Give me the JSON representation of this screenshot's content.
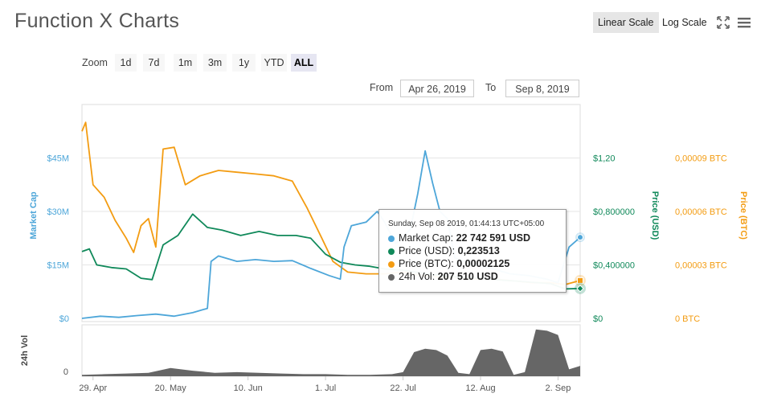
{
  "page": {
    "title": "Function X Charts",
    "scale_buttons": [
      "Linear Scale",
      "Log Scale"
    ],
    "active_scale": "Linear Scale",
    "zoom_label": "Zoom",
    "zoom_buttons": [
      "1d",
      "7d",
      "1m",
      "3m",
      "1y",
      "YTD",
      "ALL"
    ],
    "active_zoom": "ALL",
    "from_label": "From",
    "from_value": "Apr 26, 2019",
    "to_label": "To",
    "to_value": "Sep 8, 2019"
  },
  "icons": [
    "fullscreen-icon",
    "menu-icon"
  ],
  "colors": {
    "market_cap": "#4da6d9",
    "price_usd": "#10895a",
    "price_btc": "#f39c12",
    "volume": "#666666",
    "active_bg": "#e6e6e6"
  },
  "tooltip": {
    "header": "Sunday, Sep 08 2019, 01:44:13 UTC+05:00",
    "rows": [
      {
        "label": "Market Cap:",
        "value": "22 742 591 USD",
        "color": "#4da6d9"
      },
      {
        "label": "Price (USD):",
        "value": "0,223513",
        "color": "#10895a"
      },
      {
        "label": "Price (BTC):",
        "value": "0,00002125",
        "color": "#f39c12"
      },
      {
        "label": "24h Vol:",
        "value": "207 510 USD",
        "color": "#666666"
      }
    ]
  },
  "chart_data": {
    "type": "line",
    "x_tick_labels": [
      "29. Apr",
      "20. May",
      "10. Jun",
      "1. Jul",
      "22. Jul",
      "12. Aug",
      "2. Sep"
    ],
    "x_range": [
      "2019-04-26",
      "2019-09-08"
    ],
    "y_axes": {
      "market_cap": {
        "label": "Market Cap",
        "ticks": [
          "$0",
          "$15M",
          "$30M",
          "$45M"
        ],
        "range": [
          0,
          45000000
        ]
      },
      "price_usd": {
        "label": "Price (USD)",
        "ticks": [
          "$0",
          "$0,400000",
          "$0,800000",
          "$1,20"
        ],
        "range": [
          0,
          1.2
        ]
      },
      "price_btc": {
        "label": "Price (BTC)",
        "ticks": [
          "0 BTC",
          "0,00003 BTC",
          "0,00006 BTC",
          "0,00009 BTC"
        ],
        "range": [
          0,
          9e-05
        ]
      },
      "volume": {
        "label": "24h Vol",
        "ticks": [
          "0"
        ]
      }
    },
    "grid": true,
    "series": [
      {
        "name": "Market Cap",
        "axis": "market_cap",
        "x": [
          "2019-04-26",
          "2019-05-01",
          "2019-05-06",
          "2019-05-11",
          "2019-05-16",
          "2019-05-21",
          "2019-05-26",
          "2019-05-30",
          "2019-05-31",
          "2019-06-02",
          "2019-06-07",
          "2019-06-12",
          "2019-06-17",
          "2019-06-22",
          "2019-06-27",
          "2019-07-02",
          "2019-07-05",
          "2019-07-06",
          "2019-07-08",
          "2019-07-12",
          "2019-07-15",
          "2019-07-17",
          "2019-07-20",
          "2019-07-24",
          "2019-07-26",
          "2019-07-28",
          "2019-07-30",
          "2019-08-01",
          "2019-08-03",
          "2019-08-05",
          "2019-08-10",
          "2019-08-15",
          "2019-08-20",
          "2019-08-25",
          "2019-08-30",
          "2019-09-02",
          "2019-09-05",
          "2019-09-08"
        ],
        "values": [
          0,
          0.6,
          0.3,
          0.8,
          1.2,
          0.6,
          1.6,
          2.8,
          16,
          17.5,
          16,
          16.5,
          16,
          16.2,
          14,
          12,
          11,
          20,
          26,
          27,
          30,
          27,
          21,
          25,
          35,
          47,
          38,
          30,
          28,
          17,
          15,
          14,
          12.5,
          12,
          11,
          10,
          20,
          22.74
        ]
      },
      {
        "name": "Price (USD)",
        "axis": "price_usd",
        "x": [
          "2019-04-26",
          "2019-04-28",
          "2019-04-30",
          "2019-05-04",
          "2019-05-08",
          "2019-05-12",
          "2019-05-15",
          "2019-05-18",
          "2019-05-22",
          "2019-05-26",
          "2019-05-30",
          "2019-06-03",
          "2019-06-08",
          "2019-06-13",
          "2019-06-18",
          "2019-06-23",
          "2019-06-27",
          "2019-07-01",
          "2019-07-05",
          "2019-07-09",
          "2019-07-13",
          "2019-07-17",
          "2019-07-22",
          "2019-07-27",
          "2019-08-01",
          "2019-08-06",
          "2019-08-11",
          "2019-08-16",
          "2019-08-21",
          "2019-08-26",
          "2019-08-31",
          "2019-09-04",
          "2019-09-08"
        ],
        "values": [
          0.5,
          0.52,
          0.4,
          0.38,
          0.37,
          0.3,
          0.29,
          0.55,
          0.62,
          0.78,
          0.68,
          0.66,
          0.62,
          0.65,
          0.62,
          0.62,
          0.6,
          0.48,
          0.42,
          0.4,
          0.39,
          0.37,
          0.36,
          0.34,
          0.32,
          0.31,
          0.3,
          0.29,
          0.28,
          0.27,
          0.26,
          0.22,
          0.2235
        ]
      },
      {
        "name": "Price (BTC)",
        "axis": "price_btc",
        "x": [
          "2019-04-26",
          "2019-04-27",
          "2019-04-29",
          "2019-05-02",
          "2019-05-05",
          "2019-05-08",
          "2019-05-10",
          "2019-05-12",
          "2019-05-14",
          "2019-05-16",
          "2019-05-18",
          "2019-05-21",
          "2019-05-24",
          "2019-05-28",
          "2019-06-02",
          "2019-06-07",
          "2019-06-12",
          "2019-06-17",
          "2019-06-22",
          "2019-06-26",
          "2019-06-30",
          "2019-07-03",
          "2019-07-07",
          "2019-07-12",
          "2019-07-17",
          "2019-07-22",
          "2019-07-27",
          "2019-08-01",
          "2019-08-06",
          "2019-08-11",
          "2019-08-16",
          "2019-08-21",
          "2019-08-26",
          "2019-08-31",
          "2019-09-04",
          "2019-09-08"
        ],
        "values": [
          0.000105,
          0.00011,
          7.5e-05,
          6.8e-05,
          5.5e-05,
          4.5e-05,
          3.7e-05,
          5.2e-05,
          5.6e-05,
          4e-05,
          9.5e-05,
          9.6e-05,
          7.5e-05,
          8e-05,
          8.3e-05,
          8.2e-05,
          8.1e-05,
          8e-05,
          7.7e-05,
          6.2e-05,
          4.5e-05,
          3.2e-05,
          2.6e-05,
          2.5e-05,
          2.5e-05,
          2.6e-05,
          2.4e-05,
          2.3e-05,
          2.3e-05,
          2.2e-05,
          2.2e-05,
          2.1e-05,
          2e-05,
          2e-05,
          1.9e-05,
          2.125e-05
        ]
      },
      {
        "name": "24h Vol",
        "axis": "volume",
        "x": [
          "2019-04-26",
          "2019-05-02",
          "2019-05-08",
          "2019-05-14",
          "2019-05-20",
          "2019-05-26",
          "2019-06-01",
          "2019-06-07",
          "2019-06-13",
          "2019-06-19",
          "2019-06-25",
          "2019-07-01",
          "2019-07-07",
          "2019-07-13",
          "2019-07-19",
          "2019-07-22",
          "2019-07-25",
          "2019-07-28",
          "2019-07-31",
          "2019-08-03",
          "2019-08-06",
          "2019-08-09",
          "2019-08-12",
          "2019-08-15",
          "2019-08-18",
          "2019-08-21",
          "2019-08-24",
          "2019-08-27",
          "2019-08-30",
          "2019-09-02",
          "2019-09-05",
          "2019-09-08"
        ],
        "values": [
          2,
          3,
          4,
          5,
          12,
          8,
          5,
          6,
          5,
          4,
          3,
          3,
          2,
          2,
          3,
          6,
          35,
          40,
          38,
          30,
          5,
          3,
          38,
          40,
          36,
          2,
          6,
          68,
          66,
          60,
          10,
          15
        ]
      }
    ]
  }
}
